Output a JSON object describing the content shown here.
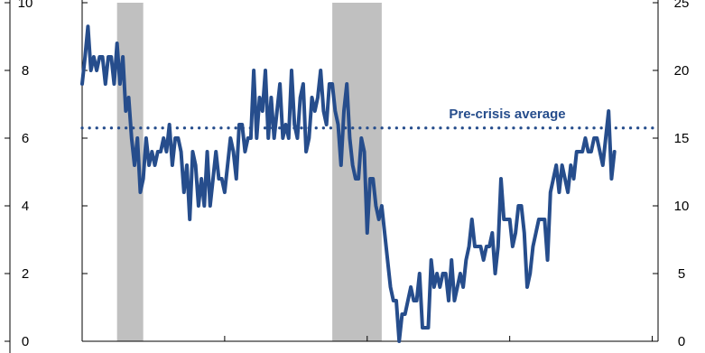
{
  "chart_data": {
    "type": "line",
    "title": "",
    "xlabel": "",
    "ylabel": "",
    "ylim_left": [
      0,
      10
    ],
    "yticks_left": [
      "0",
      "2",
      "4",
      "6",
      "8",
      "10"
    ],
    "ylim_right": [
      0,
      25
    ],
    "yticks_right": [
      "0",
      "5",
      "10",
      "15",
      "20",
      "25"
    ],
    "grid": false,
    "legend": "none",
    "x_index_range": [
      0,
      198
    ],
    "x_ticks_index": [
      0,
      49,
      98,
      147,
      196
    ],
    "series": [
      {
        "color": "#264d8c",
        "axis": "left",
        "values": [
          7.6,
          8.4,
          9.3,
          8.0,
          8.4,
          8.0,
          8.4,
          8.4,
          7.6,
          8.4,
          8.4,
          7.6,
          8.8,
          7.6,
          8.4,
          6.8,
          7.2,
          6.0,
          5.2,
          6.0,
          4.4,
          4.8,
          6.0,
          5.2,
          5.6,
          5.2,
          5.6,
          5.6,
          6.0,
          5.6,
          6.4,
          5.2,
          6.0,
          6.0,
          5.6,
          4.4,
          5.2,
          3.6,
          5.6,
          5.2,
          4.0,
          4.8,
          4.0,
          5.6,
          4.0,
          4.8,
          5.6,
          4.8,
          4.8,
          4.4,
          5.2,
          6.0,
          5.6,
          4.8,
          6.4,
          6.4,
          5.6,
          6.0,
          6.0,
          8.0,
          6.0,
          7.2,
          6.8,
          8.0,
          6.0,
          7.2,
          6.0,
          6.8,
          7.6,
          6.0,
          6.4,
          6.0,
          8.0,
          6.4,
          6.0,
          7.2,
          7.6,
          5.6,
          6.0,
          7.2,
          6.8,
          7.2,
          8.0,
          6.8,
          6.4,
          7.6,
          7.6,
          6.8,
          6.4,
          5.2,
          6.8,
          7.6,
          6.0,
          5.2,
          4.8,
          4.8,
          6.0,
          5.6,
          3.2,
          4.8,
          4.8,
          4.0,
          3.6,
          4.0,
          3.2,
          2.4,
          1.6,
          1.2,
          1.2,
          0.0,
          0.8,
          0.8,
          1.2,
          1.6,
          1.2,
          1.2,
          2.0,
          0.4,
          0.4,
          0.4,
          2.4,
          1.6,
          2.0,
          1.6,
          2.0,
          2.0,
          1.2,
          2.4,
          1.2,
          1.6,
          2.0,
          1.6,
          2.4,
          2.8,
          3.6,
          2.8,
          2.8,
          2.8,
          2.4,
          2.8,
          2.8,
          3.2,
          2.0,
          2.8,
          4.8,
          3.6,
          3.6,
          3.6,
          2.8,
          3.2,
          4.0,
          4.0,
          3.2,
          1.6,
          2.0,
          2.8,
          3.2,
          3.6,
          3.6,
          3.6,
          2.4,
          4.4,
          4.8,
          5.2,
          4.4,
          5.2,
          4.8,
          4.4,
          5.2,
          4.8,
          5.6,
          5.6,
          5.6,
          6.0,
          5.6,
          5.6,
          6.0,
          6.0,
          5.6,
          5.2,
          6.0,
          6.8,
          4.8,
          5.6
        ]
      }
    ],
    "reference_lines": [
      {
        "label": "Pre-crisis average",
        "axis": "left",
        "value": 6.3,
        "style": "dotted",
        "color": "#264d8c"
      }
    ],
    "shaded_periods": [
      {
        "start_index": 12,
        "end_index": 21,
        "color": "#c0c0c0"
      },
      {
        "start_index": 86,
        "end_index": 103,
        "color": "#c0c0c0"
      }
    ]
  }
}
